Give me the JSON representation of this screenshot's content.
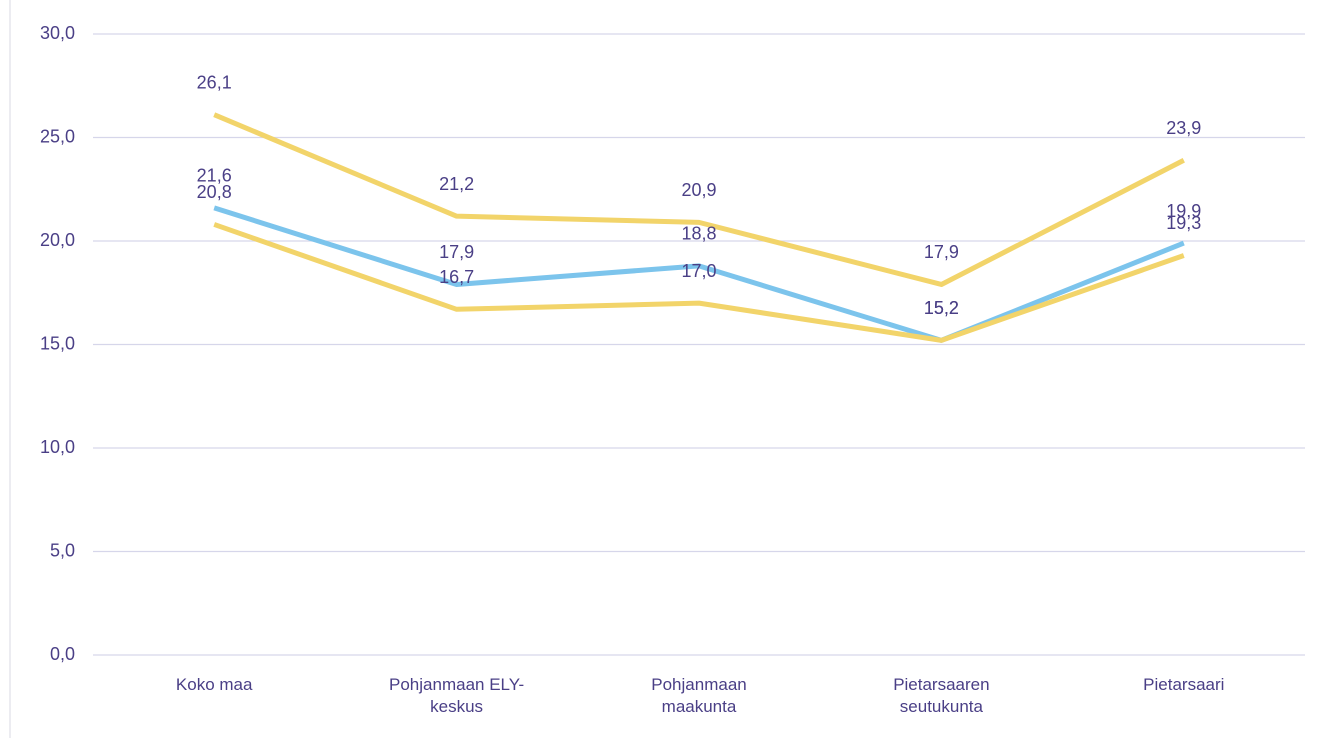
{
  "chart_data": {
    "type": "line",
    "categories": [
      "Koko maa",
      "Pohjanmaan ELY-keskus",
      "Pohjanmaan maakunta",
      "Pietarsaaren seutukunta",
      "Pietarsaari"
    ],
    "series": [
      {
        "color": "#f2d46a",
        "values": [
          26.1,
          21.2,
          20.9,
          17.9,
          23.9
        ],
        "value_labels": [
          "26,1",
          "21,2",
          "20,9",
          "17,9",
          "23,9"
        ]
      },
      {
        "color": "#7cc4ec",
        "values": [
          21.6,
          17.9,
          18.8,
          15.2,
          19.9
        ],
        "value_labels": [
          "21,6",
          "17,9",
          "18,8",
          "15,2",
          "19,9"
        ]
      },
      {
        "color": "#f2d46a",
        "values": [
          20.8,
          16.7,
          17.0,
          15.2,
          19.3
        ],
        "value_labels": [
          "20,8",
          "16,7",
          "17,0",
          "15,2",
          "19,3"
        ]
      }
    ],
    "ylim": [
      0,
      30
    ],
    "yticks": [
      {
        "value": 0,
        "label": "0,0"
      },
      {
        "value": 5,
        "label": "5,0"
      },
      {
        "value": 10,
        "label": "10,0"
      },
      {
        "value": 15,
        "label": "15,0"
      },
      {
        "value": 20,
        "label": "20,0"
      },
      {
        "value": 25,
        "label": "25,0"
      },
      {
        "value": 30,
        "label": "30,0"
      }
    ],
    "grid": true
  }
}
